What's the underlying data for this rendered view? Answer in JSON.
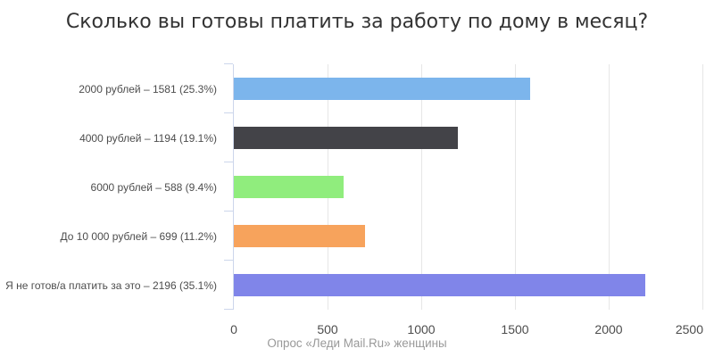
{
  "chart_data": {
    "type": "bar",
    "orientation": "horizontal",
    "title": "Сколько вы готовы платить за работу по дому в месяц?",
    "caption": "Опрос «Леди Mail.Ru» женщины",
    "categories": [
      "2000 рублей – 1581 (25.3%)",
      "4000 рублей – 1194 (19.1%)",
      "6000 рублей – 588 (9.4%)",
      "До 10 000 рублей – 699 (11.2%)",
      "Я не готов/а платить за это – 2196 (35.1%)"
    ],
    "category_names": [
      "2000 рублей",
      "4000 рублей",
      "6000 рублей",
      "До 10 000 рублей",
      "Я не готов/а платить за это"
    ],
    "values": [
      1581,
      1194,
      588,
      699,
      2196
    ],
    "percents": [
      25.3,
      19.1,
      9.4,
      11.2,
      35.1
    ],
    "colors": [
      "#7cb5ec",
      "#434348",
      "#90ed7d",
      "#f7a35c",
      "#8085e9"
    ],
    "xlim": [
      0,
      2500
    ],
    "xticks": [
      0,
      500,
      1000,
      1500,
      2000,
      2500
    ],
    "grid": true,
    "legend": false,
    "grid_color": "#e6e6e6",
    "axis_color": "#ccd6eb",
    "title_color": "#333333",
    "label_color": "#4d4d4d",
    "caption_color": "#999999"
  }
}
